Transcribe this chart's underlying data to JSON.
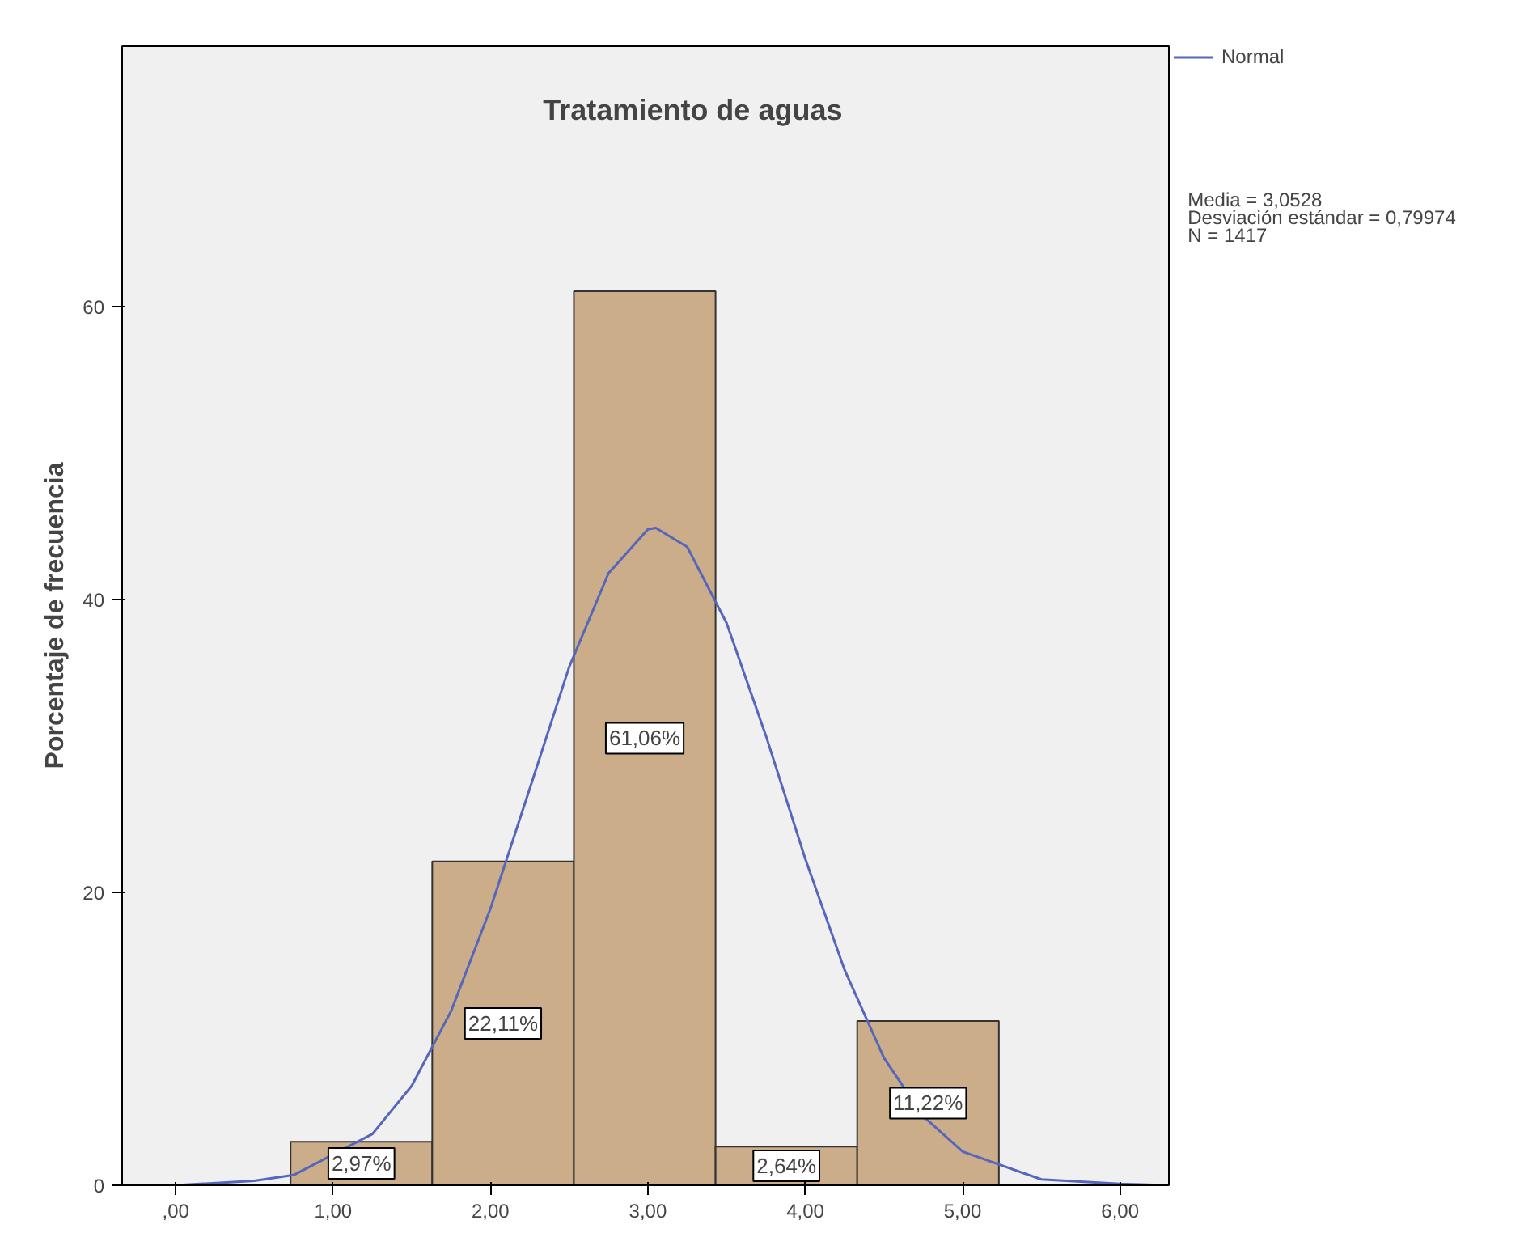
{
  "chart_data": {
    "type": "histogram",
    "title": "Tratamiento de aguas",
    "ylabel": "Porcentaje de frecuencia",
    "bins": [
      0.73,
      1.63,
      2.53,
      3.43,
      4.33,
      5.23
    ],
    "values": [
      2.97,
      22.11,
      61.06,
      2.64,
      11.22
    ],
    "value_labels": [
      "2,97%",
      "22,11%",
      "61,06%",
      "2,64%",
      "11,22%"
    ],
    "color": "#ccad8a",
    "series": [
      {
        "name": "Normal",
        "type": "line",
        "color": "#5566bb",
        "x": [
          -0.3,
          0,
          0.5,
          0.75,
          1.25,
          1.5,
          1.75,
          2.0,
          2.25,
          2.5,
          2.75,
          3.0,
          3.05,
          3.25,
          3.5,
          3.75,
          4.0,
          4.25,
          4.5,
          4.75,
          5.0,
          5.5,
          6.0,
          6.3
        ],
        "values": [
          0,
          0,
          0.3,
          0.7,
          3.5,
          6.8,
          11.9,
          18.9,
          27.1,
          35.4,
          41.8,
          44.8,
          44.9,
          43.6,
          38.4,
          30.7,
          22.3,
          14.7,
          8.7,
          4.7,
          2.3,
          0.4,
          0.1,
          0
        ]
      }
    ],
    "annotations": [
      "Media = 3,0528",
      "Desviación estándar = 0,79974",
      "N = 1417"
    ],
    "xlim": [
      -0.34,
      6.31
    ],
    "ylim": [
      0,
      77.8
    ],
    "xticks": [
      {
        "value": 0,
        "label": ",00"
      },
      {
        "value": 1,
        "label": "1,00"
      },
      {
        "value": 2,
        "label": "2,00"
      },
      {
        "value": 3,
        "label": "3,00"
      },
      {
        "value": 4,
        "label": "4,00"
      },
      {
        "value": 5,
        "label": "5,00"
      },
      {
        "value": 6,
        "label": "6,00"
      }
    ],
    "yticks": [
      0,
      20,
      40,
      60
    ],
    "legend": "top right",
    "grid": false
  }
}
